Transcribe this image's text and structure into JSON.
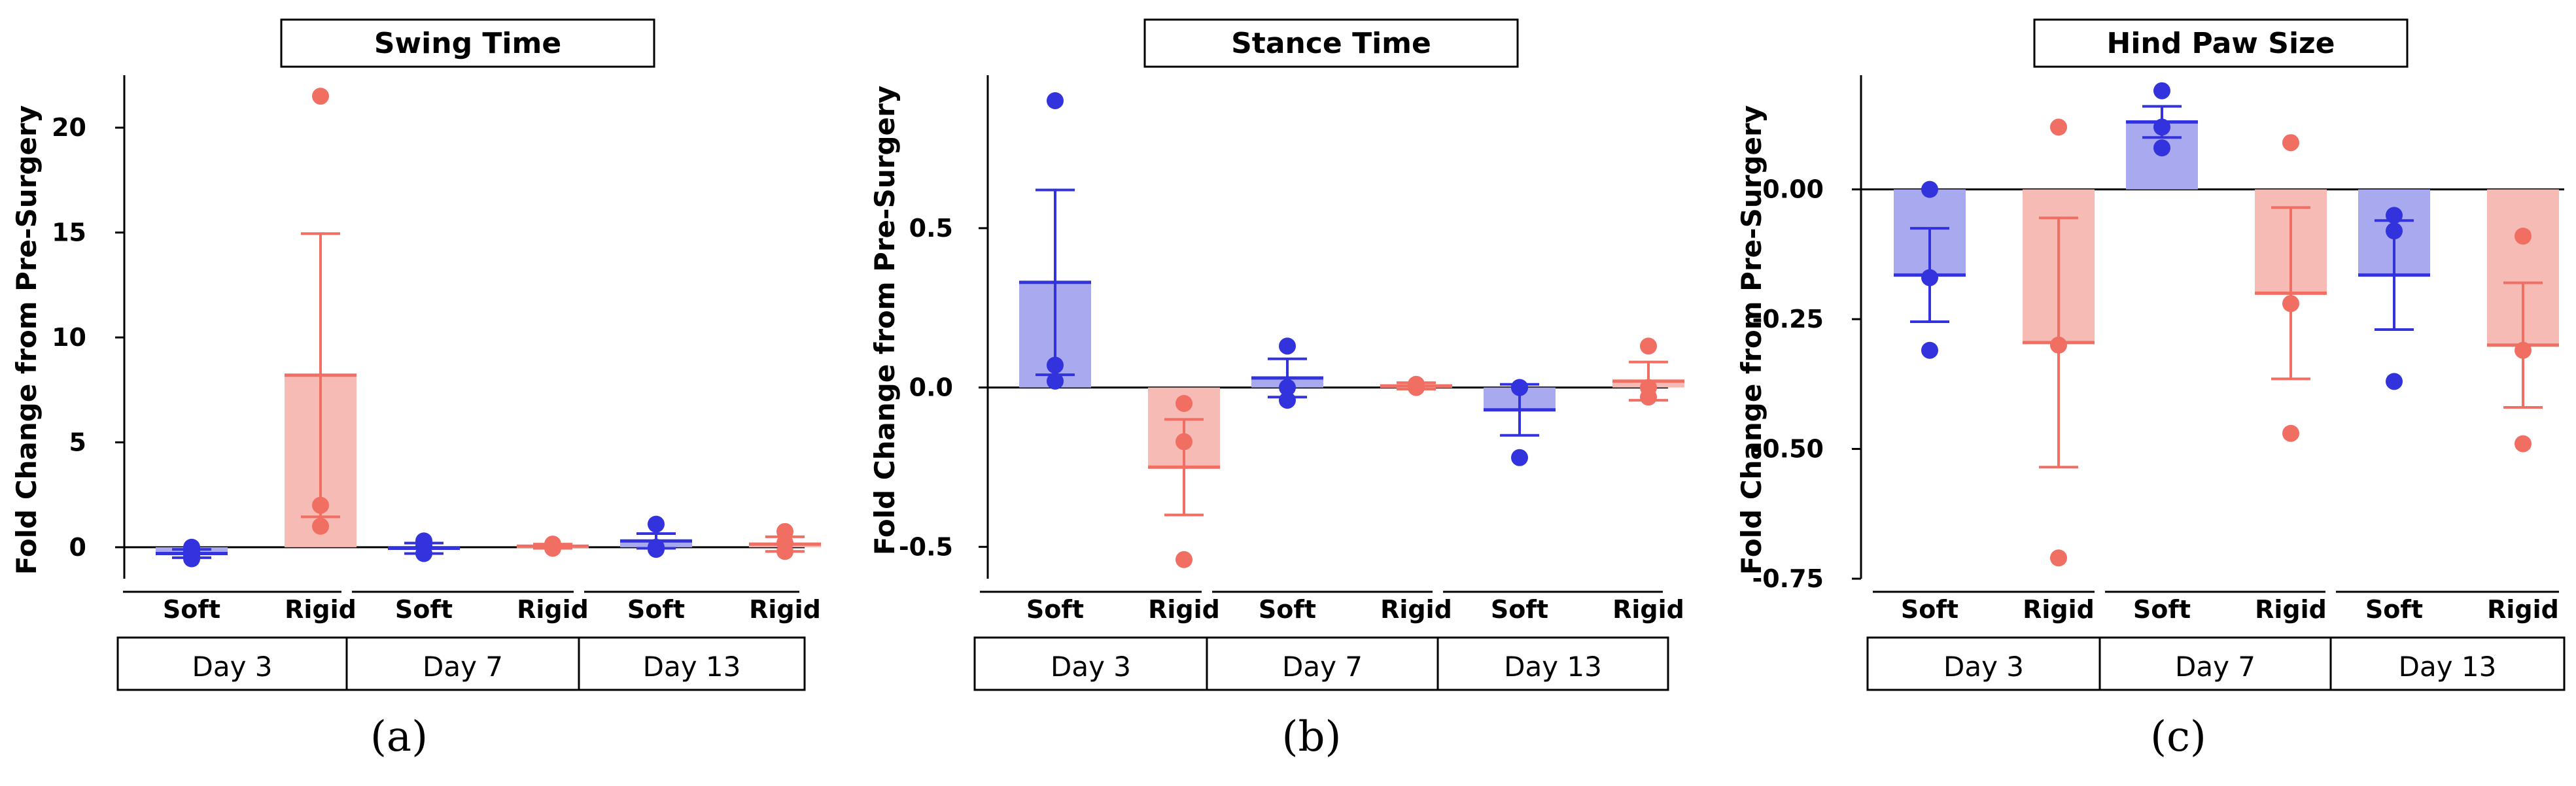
{
  "figure": {
    "colors": {
      "soft": "#3333dd",
      "rigid": "#f06e62",
      "soft_bar": "#a8a9ef",
      "rigid_bar": "#f7bbb6",
      "axis": "#000000"
    },
    "charts": [
      {
        "caption": "a",
        "title": "Swing Time",
        "ylabel": "Fold Change from Pre-Surgery",
        "ylim": [
          -1.5,
          22.5
        ],
        "ticks": [
          0,
          5,
          10,
          15,
          20
        ],
        "tick_labels": [
          "0",
          "5",
          "10",
          "15",
          "20"
        ],
        "groups": [
          {
            "day": "Day 3",
            "bars": [
              {
                "label": "Soft",
                "mean": -0.3,
                "sem": 0.2,
                "points": [
                  -0.55,
                  -0.4,
                  -0.2,
                  0.0
                ]
              },
              {
                "label": "Rigid",
                "mean": 8.2,
                "sem": 6.75,
                "points": [
                  21.5,
                  2.0,
                  1.0
                ]
              }
            ]
          },
          {
            "day": "Day 7",
            "bars": [
              {
                "label": "Soft",
                "mean": -0.05,
                "sem": 0.25,
                "points": [
                  0.3,
                  -0.3,
                  0.05
                ]
              },
              {
                "label": "Rigid",
                "mean": 0.05,
                "sem": 0.1,
                "points": [
                  0.15,
                  -0.05,
                  0.05
                ]
              }
            ]
          },
          {
            "day": "Day 13",
            "bars": [
              {
                "label": "Soft",
                "mean": 0.3,
                "sem": 0.35,
                "points": [
                  1.1,
                  -0.1,
                  0.0
                ]
              },
              {
                "label": "Rigid",
                "mean": 0.15,
                "sem": 0.35,
                "points": [
                  0.75,
                  -0.2,
                  0.2
                ]
              }
            ]
          }
        ]
      },
      {
        "caption": "b",
        "title": "Stance Time",
        "ylabel": "Fold Change from Pre-Surgery",
        "ylim": [
          -0.6,
          0.98
        ],
        "ticks": [
          -0.5,
          0.0,
          0.5
        ],
        "tick_labels": [
          "-0.5",
          "0.0",
          "0.5"
        ],
        "groups": [
          {
            "day": "Day 3",
            "bars": [
              {
                "label": "Soft",
                "mean": 0.33,
                "sem": 0.29,
                "points": [
                  0.9,
                  0.07,
                  0.02
                ]
              },
              {
                "label": "Rigid",
                "mean": -0.25,
                "sem": 0.15,
                "points": [
                  -0.05,
                  -0.17,
                  -0.54
                ]
              }
            ]
          },
          {
            "day": "Day 7",
            "bars": [
              {
                "label": "Soft",
                "mean": 0.03,
                "sem": 0.06,
                "points": [
                  0.13,
                  0.0,
                  -0.04
                ]
              },
              {
                "label": "Rigid",
                "mean": 0.005,
                "sem": 0.01,
                "points": [
                  0.01,
                  0.0,
                  0.005
                ]
              }
            ]
          },
          {
            "day": "Day 13",
            "bars": [
              {
                "label": "Soft",
                "mean": -0.07,
                "sem": 0.08,
                "points": [
                  0.0,
                  -0.22,
                  0.0
                ]
              },
              {
                "label": "Rigid",
                "mean": 0.02,
                "sem": 0.06,
                "points": [
                  0.13,
                  -0.03,
                  0.0
                ]
              }
            ]
          }
        ]
      },
      {
        "caption": "c",
        "title": "Hind Paw Size",
        "ylabel": "Fold Change from Pre-Surgery",
        "ylim": [
          -0.75,
          0.22
        ],
        "ticks": [
          -0.75,
          -0.5,
          -0.25,
          0.0
        ],
        "tick_labels": [
          "-0.75",
          "-0.50",
          "-0.25",
          "0.00"
        ],
        "groups": [
          {
            "day": "Day 3",
            "bars": [
              {
                "label": "Soft",
                "mean": -0.165,
                "sem": 0.09,
                "points": [
                  0.0,
                  -0.17,
                  -0.31
                ]
              },
              {
                "label": "Rigid",
                "mean": -0.295,
                "sem": 0.24,
                "points": [
                  0.12,
                  -0.3,
                  -0.71
                ]
              }
            ]
          },
          {
            "day": "Day 7",
            "bars": [
              {
                "label": "Soft",
                "mean": 0.13,
                "sem": 0.03,
                "points": [
                  0.19,
                  0.12,
                  0.08
                ]
              },
              {
                "label": "Rigid",
                "mean": -0.2,
                "sem": 0.165,
                "points": [
                  0.09,
                  -0.22,
                  -0.47
                ]
              }
            ]
          },
          {
            "day": "Day 13",
            "bars": [
              {
                "label": "Soft",
                "mean": -0.165,
                "sem": 0.105,
                "points": [
                  -0.05,
                  -0.08,
                  -0.37
                ]
              },
              {
                "label": "Rigid",
                "mean": -0.3,
                "sem": 0.12,
                "points": [
                  -0.09,
                  -0.31,
                  -0.49
                ]
              }
            ]
          }
        ]
      }
    ]
  },
  "chart_data": [
    {
      "type": "bar",
      "title": "Swing Time",
      "ylabel": "Fold Change from Pre-Surgery",
      "categories": [
        "Day 3",
        "Day 7",
        "Day 13"
      ],
      "series": [
        {
          "name": "Soft",
          "values": [
            -0.3,
            -0.05,
            0.3
          ]
        },
        {
          "name": "Rigid",
          "values": [
            8.2,
            0.05,
            0.15
          ]
        }
      ],
      "ylim": [
        -1.5,
        22.5
      ]
    },
    {
      "type": "bar",
      "title": "Stance Time",
      "ylabel": "Fold Change from Pre-Surgery",
      "categories": [
        "Day 3",
        "Day 7",
        "Day 13"
      ],
      "series": [
        {
          "name": "Soft",
          "values": [
            0.33,
            0.03,
            -0.07
          ]
        },
        {
          "name": "Rigid",
          "values": [
            -0.25,
            0.005,
            0.02
          ]
        }
      ],
      "ylim": [
        -0.6,
        0.98
      ]
    },
    {
      "type": "bar",
      "title": "Hind Paw Size",
      "ylabel": "Fold Change from Pre-Surgery",
      "categories": [
        "Day 3",
        "Day 7",
        "Day 13"
      ],
      "series": [
        {
          "name": "Soft",
          "values": [
            -0.165,
            0.13,
            -0.165
          ]
        },
        {
          "name": "Rigid",
          "values": [
            -0.295,
            -0.2,
            -0.3
          ]
        }
      ],
      "ylim": [
        -0.75,
        0.22
      ]
    }
  ]
}
